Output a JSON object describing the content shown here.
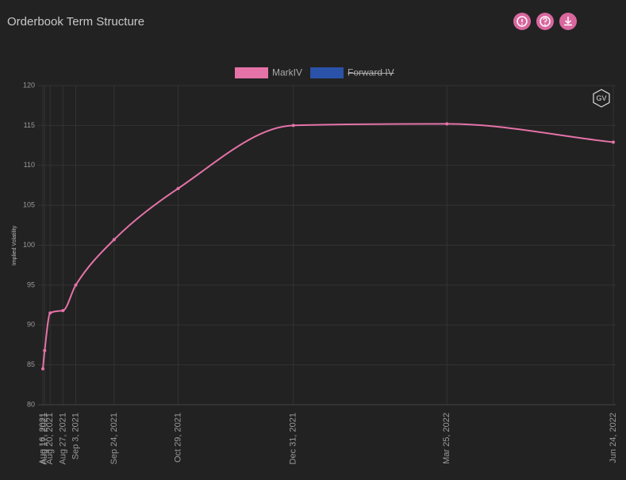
{
  "chart_data": {
    "type": "line",
    "title": "Orderbook Term Structure",
    "logo": "GV",
    "ylabel": "Implied Volatility",
    "x": [
      "Aug 16, 2021",
      "Aug 17, 2021",
      "Aug 20, 2021",
      "Aug 27, 2021",
      "Sep 3, 2021",
      "Sep 24, 2021",
      "Oct 29, 2021",
      "Dec 31, 2021",
      "Mar 25, 2022",
      "Jun 24, 2022"
    ],
    "series": [
      {
        "name": "MarkIV",
        "color": "#e573a8",
        "values": [
          84.5,
          86.8,
          91.5,
          91.8,
          95,
          100.7,
          107.1,
          115,
          115.2,
          112.9
        ]
      },
      {
        "name": "Forward IV",
        "color": "#2a52a8",
        "hidden": true
      }
    ],
    "ylim": [
      80,
      120
    ],
    "yticks": [
      80,
      85,
      90,
      95,
      100,
      105,
      110,
      115,
      120
    ],
    "grid": true,
    "legend": "top"
  }
}
